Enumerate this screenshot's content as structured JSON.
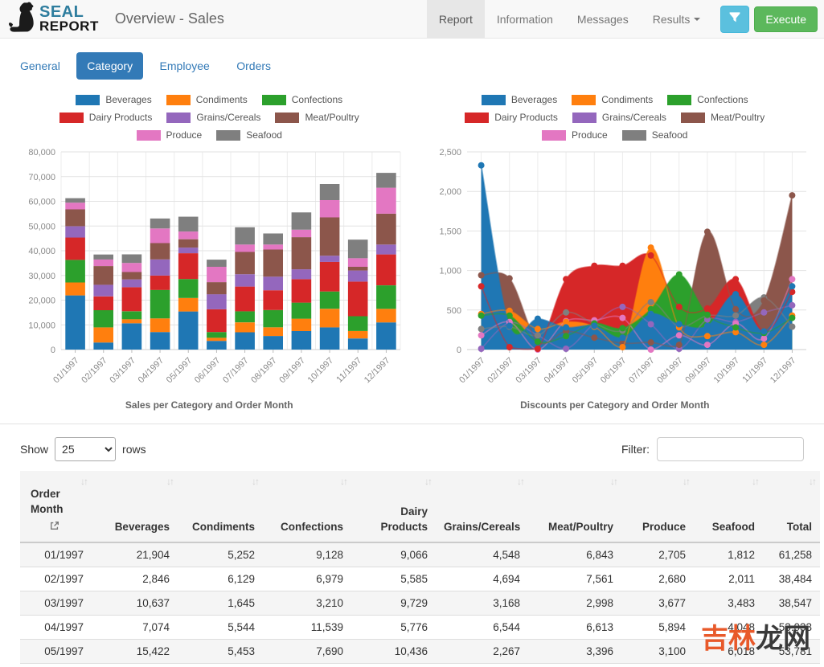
{
  "header": {
    "brand_line1": "SEAL",
    "brand_line2": "REPORT",
    "title": "Overview - Sales",
    "nav": [
      {
        "label": "Report",
        "active": true
      },
      {
        "label": "Information",
        "active": false
      },
      {
        "label": "Messages",
        "active": false
      },
      {
        "label": "Results",
        "active": false,
        "caret": true
      }
    ],
    "filter_button_icon": "funnel-icon",
    "execute_label": "Execute",
    "colors": {
      "filter_button": "#5bc0de",
      "execute_button": "#5cb85c",
      "brand_teal": "#2e7d9e"
    }
  },
  "tabs": [
    {
      "label": "General",
      "active": false
    },
    {
      "label": "Category",
      "active": true
    },
    {
      "label": "Employee",
      "active": false
    },
    {
      "label": "Orders",
      "active": false
    }
  ],
  "chart_data": [
    {
      "type": "bar",
      "stacked": true,
      "title": "Sales per Category and Order Month",
      "categories": [
        "01/1997",
        "02/1997",
        "03/1997",
        "04/1997",
        "05/1997",
        "06/1997",
        "07/1997",
        "08/1997",
        "09/1997",
        "10/1997",
        "11/1997",
        "12/1997"
      ],
      "ylim": [
        0,
        80000
      ],
      "ytick": 10000,
      "grid": true,
      "legend_position": "top",
      "series": [
        {
          "name": "Beverages",
          "color": "#1f77b4",
          "values": [
            21904,
            2846,
            10637,
            7074,
            15422,
            3500,
            7000,
            5500,
            7500,
            9000,
            4500,
            11000
          ]
        },
        {
          "name": "Condiments",
          "color": "#ff7f0e",
          "values": [
            5252,
            6129,
            1645,
            5544,
            5453,
            1300,
            4000,
            3500,
            5000,
            7500,
            3000,
            5500
          ]
        },
        {
          "name": "Confections",
          "color": "#2ca02c",
          "values": [
            9128,
            6979,
            3210,
            11539,
            7690,
            2300,
            4500,
            7000,
            6500,
            7000,
            6000,
            9500
          ]
        },
        {
          "name": "Dairy Products",
          "color": "#d62728",
          "values": [
            9066,
            5585,
            9729,
            5776,
            10436,
            9200,
            10000,
            8000,
            9500,
            12000,
            14000,
            12500
          ]
        },
        {
          "name": "Grains/Cereals",
          "color": "#9467bd",
          "values": [
            4548,
            4694,
            3168,
            6544,
            2267,
            6100,
            5000,
            5500,
            4000,
            2500,
            4500,
            4000
          ]
        },
        {
          "name": "Meat/Poultry",
          "color": "#8c564b",
          "values": [
            6843,
            7561,
            2998,
            6613,
            3396,
            4900,
            9000,
            11000,
            13000,
            15500,
            1500,
            12500
          ]
        },
        {
          "name": "Produce",
          "color": "#e377c2",
          "values": [
            2705,
            2680,
            3677,
            5894,
            3100,
            6200,
            3000,
            2000,
            3000,
            7000,
            3500,
            10500
          ]
        },
        {
          "name": "Seafood",
          "color": "#7f7f7f",
          "values": [
            1812,
            2011,
            3483,
            4048,
            6018,
            2900,
            7000,
            4500,
            7000,
            6500,
            7500,
            6000
          ]
        }
      ]
    },
    {
      "type": "area",
      "stacked": false,
      "title": "Discounts per Category and Order Month",
      "categories": [
        "01/1997",
        "02/1997",
        "03/1997",
        "04/1997",
        "05/1997",
        "06/1997",
        "07/1997",
        "08/1997",
        "09/1997",
        "10/1997",
        "11/1997",
        "12/1997"
      ],
      "ylim": [
        0,
        2500
      ],
      "ytick": 500,
      "grid": true,
      "legend_position": "top",
      "paint_order": [
        "Grains/Cereals",
        "Produce",
        "Seafood",
        "Meat/Poultry",
        "Dairy Products",
        "Condiments",
        "Confections",
        "Beverages"
      ],
      "series": [
        {
          "name": "Beverages",
          "color": "#1f77b4",
          "values": [
            2330,
            300,
            390,
            280,
            300,
            150,
            450,
            320,
            300,
            700,
            230,
            800
          ]
        },
        {
          "name": "Condiments",
          "color": "#ff7f0e",
          "values": [
            450,
            490,
            260,
            350,
            290,
            30,
            1290,
            280,
            170,
            220,
            60,
            430
          ]
        },
        {
          "name": "Confections",
          "color": "#2ca02c",
          "values": [
            430,
            430,
            100,
            170,
            330,
            270,
            510,
            950,
            440,
            280,
            210,
            400
          ]
        },
        {
          "name": "Dairy Products",
          "color": "#d62728",
          "values": [
            800,
            30,
            10,
            890,
            1060,
            1060,
            1190,
            540,
            520,
            890,
            230,
            730
          ]
        },
        {
          "name": "Grains/Cereals",
          "color": "#9467bd",
          "values": [
            10,
            340,
            180,
            10,
            330,
            540,
            320,
            10,
            380,
            350,
            470,
            560
          ]
        },
        {
          "name": "Meat/Poultry",
          "color": "#8c564b",
          "values": [
            940,
            900,
            100,
            230,
            150,
            80,
            90,
            60,
            1490,
            510,
            620,
            1950
          ]
        },
        {
          "name": "Produce",
          "color": "#e377c2",
          "values": [
            180,
            350,
            0,
            360,
            370,
            400,
            0,
            180,
            60,
            330,
            140,
            890
          ]
        },
        {
          "name": "Seafood",
          "color": "#7f7f7f",
          "values": [
            260,
            290,
            180,
            470,
            330,
            240,
            600,
            290,
            430,
            430,
            660,
            290
          ]
        }
      ]
    }
  ],
  "table_controls": {
    "show_label": "Show",
    "page_size": "25",
    "rows_label": "rows",
    "filter_label": "Filter:",
    "filter_value": ""
  },
  "table": {
    "sort_icon": "↓↑",
    "columns": [
      "Order Month",
      "Beverages",
      "Condiments",
      "Confections",
      "Dairy Products",
      "Grains/Cereals",
      "Meat/Poultry",
      "Produce",
      "Seafood",
      "Total"
    ],
    "rows": [
      [
        "01/1997",
        "21,904",
        "5,252",
        "9,128",
        "9,066",
        "4,548",
        "6,843",
        "2,705",
        "1,812",
        "61,258"
      ],
      [
        "02/1997",
        "2,846",
        "6,129",
        "6,979",
        "5,585",
        "4,694",
        "7,561",
        "2,680",
        "2,011",
        "38,484"
      ],
      [
        "03/1997",
        "10,637",
        "1,645",
        "3,210",
        "9,729",
        "3,168",
        "2,998",
        "3,677",
        "3,483",
        "38,547"
      ],
      [
        "04/1997",
        "7,074",
        "5,544",
        "11,539",
        "5,776",
        "6,544",
        "6,613",
        "5,894",
        "4,048",
        "53.033"
      ],
      [
        "05/1997",
        "15,422",
        "5,453",
        "7,690",
        "10,436",
        "2,267",
        "3,396",
        "3,100",
        "6,018",
        "53,781"
      ]
    ]
  },
  "watermark": {
    "part1": "吉林",
    "part2": "龙网"
  }
}
